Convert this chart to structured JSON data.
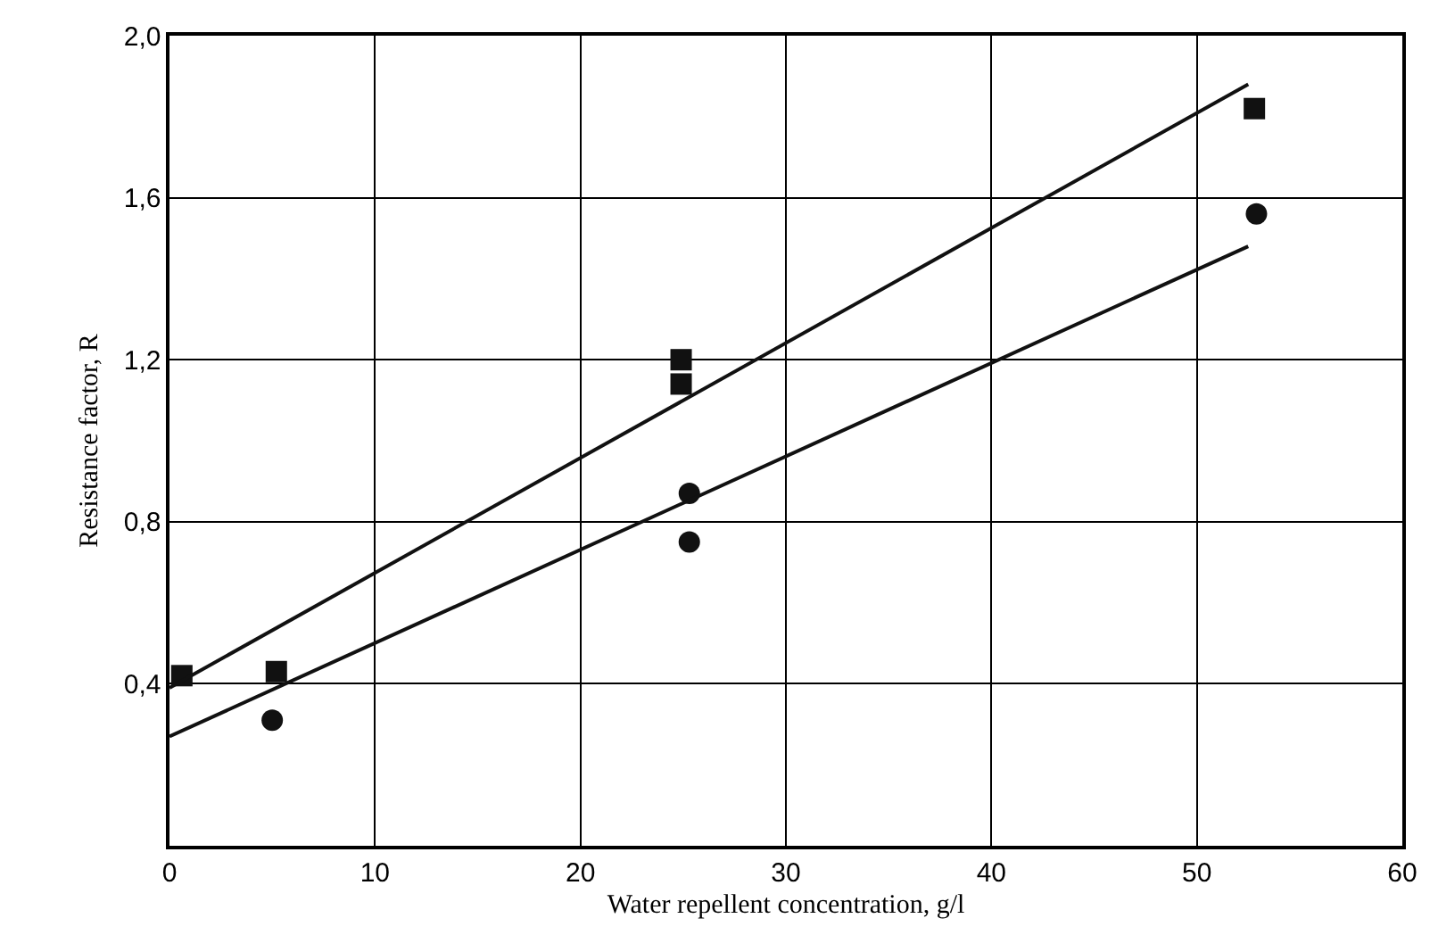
{
  "chart_data": {
    "type": "scatter",
    "xlabel": "Water repellent concentration, g/l",
    "ylabel": "Resistance factor, R",
    "xlim": [
      0,
      60
    ],
    "xticks": [
      0,
      10,
      20,
      30,
      40,
      50,
      60
    ],
    "ylim": [
      0,
      2.0
    ],
    "yticks": [
      {
        "value": 0.4,
        "label": "0,4"
      },
      {
        "value": 0.8,
        "label": "0,8"
      },
      {
        "value": 1.2,
        "label": "1,2"
      },
      {
        "value": 1.6,
        "label": "1,6"
      },
      {
        "value": 2.0,
        "label": "2,0"
      }
    ],
    "grid": true,
    "series": [
      {
        "type": "scatter",
        "marker": "square",
        "color": "#111111",
        "x": [
          0.6,
          5.2,
          24.9,
          24.9,
          52.8
        ],
        "values": [
          0.42,
          0.43,
          1.2,
          1.14,
          1.82
        ]
      },
      {
        "type": "scatter",
        "marker": "circle",
        "color": "#111111",
        "x": [
          5.0,
          25.3,
          25.3,
          52.9
        ],
        "values": [
          0.31,
          0.87,
          0.75,
          1.56
        ]
      },
      {
        "type": "line",
        "marker": "none",
        "color": "#111111",
        "x": [
          0,
          52.5
        ],
        "values": [
          0.39,
          1.88
        ]
      },
      {
        "type": "line",
        "marker": "none",
        "color": "#111111",
        "x": [
          0,
          52.5
        ],
        "values": [
          0.27,
          1.48
        ]
      }
    ]
  }
}
